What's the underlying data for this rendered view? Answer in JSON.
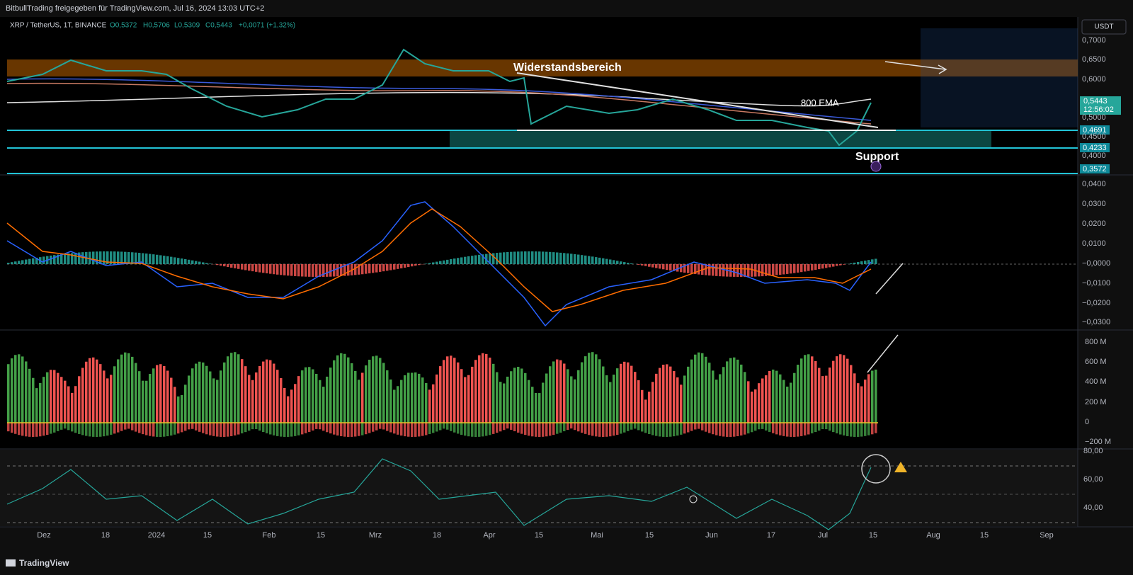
{
  "header": {
    "title": "BitbullTrading freigegeben für TradingView.com, Jul 16, 2024 13:03 UTC+2"
  },
  "legend": {
    "symbol": "XRP / TetherUS, 1T, BINANCE",
    "open": "O0,5372",
    "high": "H0,5706",
    "low": "L0,5309",
    "close": "C0,5443",
    "change": "+0,0071 (+1,32%)"
  },
  "currency_button": "USDT",
  "price_axis": [
    "0,7000",
    "0,6500",
    "0,6000",
    "0,5000",
    "0,4500",
    "0,4000"
  ],
  "price_tags": {
    "last": "0,5443",
    "countdown": "12:56:02",
    "level1": "0,4691",
    "level2": "0,4233",
    "level3": "0,3572"
  },
  "annotations": {
    "resistance": "Widerstandsbereich",
    "ema": "800 EMA",
    "support": "Support"
  },
  "macd_axis": [
    "0,0400",
    "0,0300",
    "0,0200",
    "0,0100",
    "−0,0000",
    "−0,0100",
    "−0,0200",
    "−0,0300"
  ],
  "volume_axis": [
    "800 M",
    "600 M",
    "400 M",
    "200 M",
    "0",
    "−200 M"
  ],
  "rsi_axis": [
    "80,00",
    "60,00",
    "40,00"
  ],
  "time_axis": [
    "Dez",
    "18",
    "2024",
    "15",
    "Feb",
    "15",
    "Mrz",
    "18",
    "Apr",
    "15",
    "Mai",
    "15",
    "Jun",
    "17",
    "Jul",
    "15",
    "Aug",
    "15",
    "Sep"
  ],
  "footer": {
    "brand": "TradingView"
  }
}
